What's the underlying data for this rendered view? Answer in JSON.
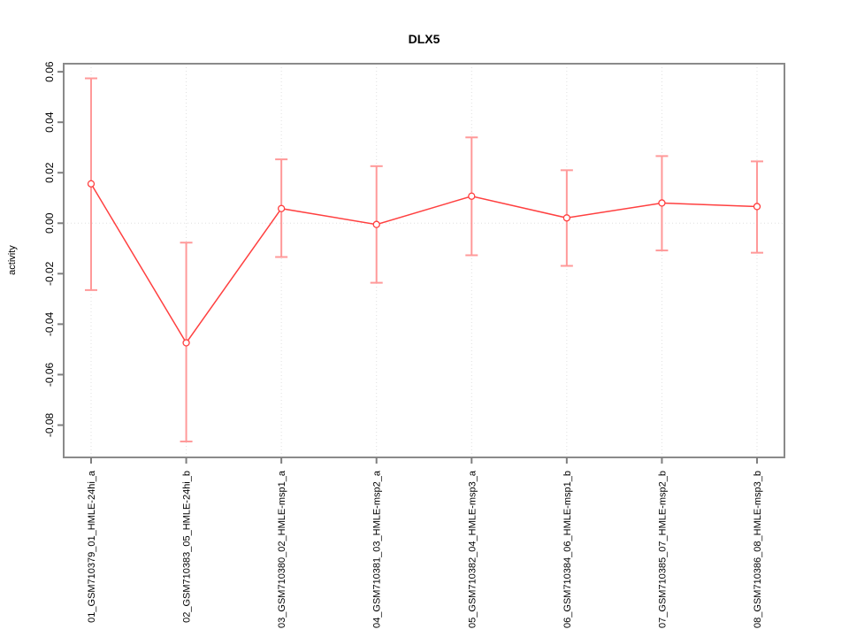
{
  "chart_data": {
    "type": "line",
    "title": "DLX5",
    "xlabel": "",
    "ylabel": "activity",
    "categories": [
      "01_GSM710379_01_HMLE-24hi_a",
      "02_GSM710383_05_HMLE-24hi_b",
      "03_GSM710380_02_HMLE-msp1_a",
      "04_GSM710381_03_HMLE-msp2_a",
      "05_GSM710382_04_HMLE-msp3_a",
      "06_GSM710384_06_HMLE-msp1_b",
      "07_GSM710385_07_HMLE-msp2_b",
      "08_GSM710386_08_HMLE-msp3_b"
    ],
    "series": [
      {
        "name": "activity",
        "values": [
          0.0156,
          -0.0474,
          0.0058,
          -0.0005,
          0.0107,
          0.0021,
          0.008,
          0.0066
        ],
        "error_low": [
          -0.0265,
          -0.0865,
          -0.0134,
          -0.0236,
          -0.0127,
          -0.0169,
          -0.0108,
          -0.0117
        ],
        "error_high": [
          0.0574,
          -0.0077,
          0.0253,
          0.0226,
          0.034,
          0.021,
          0.0266,
          0.0245
        ]
      }
    ],
    "yticks": [
      0.06,
      0.04,
      0.02,
      0.0,
      -0.02,
      -0.04,
      -0.06,
      -0.08
    ],
    "ytick_labels": [
      "0.06",
      "0.04",
      "0.02",
      "0.00",
      "-0.02",
      "-0.04",
      "-0.06",
      "-0.08"
    ],
    "ylim": [
      -0.0928,
      0.0632
    ],
    "grid": {
      "vertical_gridlines": true,
      "zero_line": true,
      "legend": "none"
    },
    "marker": "open-circle",
    "colors": {
      "line": "#ff4040",
      "point_stroke": "#ff4040",
      "point_fill": "#ffffff",
      "error_bar": "#ff9999",
      "gridline": "#e0e0e0",
      "zero_line": "#e0e0e0",
      "box_border": "#8a8a8a",
      "tick_mark": "#7f7f7f",
      "text": "#000000",
      "background": "#ffffff"
    }
  }
}
